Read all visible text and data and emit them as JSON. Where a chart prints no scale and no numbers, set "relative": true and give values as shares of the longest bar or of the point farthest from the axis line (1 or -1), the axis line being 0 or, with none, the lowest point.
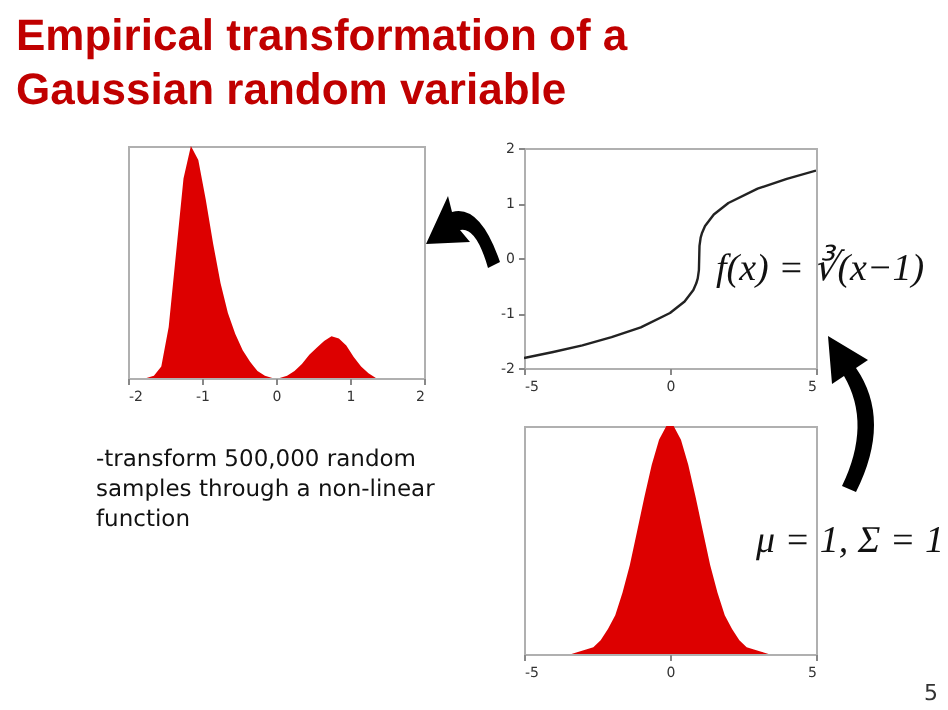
{
  "chart_data": [
    {
      "type": "area",
      "title": "Empirical transformation of a Gaussian random variable",
      "relative": true,
      "color": "#dd0000",
      "x": [
        -1.95,
        -1.85,
        -1.75,
        -1.65,
        -1.55,
        -1.45,
        -1.35,
        -1.25,
        -1.15,
        -1.05,
        -0.95,
        -0.85,
        -0.75,
        -0.65,
        -0.55,
        -0.45,
        -0.35,
        -0.25,
        -0.15,
        -0.05,
        0.05,
        0.15,
        0.25,
        0.35,
        0.45,
        0.55,
        0.65,
        0.75,
        0.85,
        0.95,
        1.05,
        1.15,
        1.25,
        1.35,
        1.45,
        1.55,
        1.65,
        1.75,
        1.85,
        1.95
      ],
      "values": [
        0,
        0,
        0,
        0.01,
        0.05,
        0.22,
        0.54,
        0.86,
        1,
        0.94,
        0.77,
        0.58,
        0.41,
        0.28,
        0.19,
        0.12,
        0.07,
        0.03,
        0.01,
        0,
        0,
        0.01,
        0.03,
        0.06,
        0.1,
        0.13,
        0.16,
        0.18,
        0.17,
        0.14,
        0.09,
        0.05,
        0.02,
        0,
        0,
        0,
        0,
        0,
        0,
        0
      ],
      "xlim": [
        -2,
        2
      ],
      "xticks": [
        -2,
        -1,
        0,
        1,
        2
      ],
      "grid": false,
      "annotations": [
        "-transform 500,000 random samples through a non-linear function"
      ]
    },
    {
      "type": "line",
      "series": [
        {
          "color": "#222222",
          "x": [
            -5,
            -4,
            -3,
            -2,
            -1,
            0,
            0.5,
            0.8,
            0.9,
            0.95,
            0.99,
            1,
            1.01,
            1.05,
            1.1,
            1.2,
            1.5,
            2,
            3,
            4,
            5
          ],
          "values": [
            -1.82,
            -1.71,
            -1.59,
            -1.44,
            -1.26,
            -1,
            -0.79,
            -0.58,
            -0.46,
            -0.37,
            -0.22,
            0,
            0.22,
            0.37,
            0.46,
            0.58,
            0.79,
            1,
            1.26,
            1.44,
            1.59
          ]
        }
      ],
      "xlim": [
        -5,
        5
      ],
      "xticks": [
        -5,
        0,
        5
      ],
      "ylim": [
        -2,
        2
      ],
      "yticks": [
        -2,
        -1,
        0,
        1,
        2
      ],
      "grid": false,
      "annotations": [
        "f(x) = ∛(x−1)"
      ]
    },
    {
      "type": "area",
      "relative": true,
      "color": "#dd0000",
      "x": [
        -4.875,
        -4.625,
        -4.375,
        -4.125,
        -3.875,
        -3.625,
        -3.375,
        -3.125,
        -2.875,
        -2.625,
        -2.375,
        -2.125,
        -1.875,
        -1.625,
        -1.375,
        -1.125,
        -0.875,
        -0.625,
        -0.375,
        -0.125,
        0.125,
        0.375,
        0.625,
        0.875,
        1.125,
        1.375,
        1.625,
        1.875,
        2.125,
        2.375,
        2.625,
        2.875,
        3.125,
        3.375,
        3.625,
        3.875,
        4.125,
        4.375,
        4.625,
        4.875
      ],
      "values": [
        0,
        0,
        0,
        0,
        0,
        0,
        0,
        0.01,
        0.02,
        0.03,
        0.06,
        0.11,
        0.17,
        0.27,
        0.39,
        0.54,
        0.69,
        0.83,
        0.94,
        1,
        1,
        0.94,
        0.83,
        0.69,
        0.54,
        0.39,
        0.27,
        0.17,
        0.11,
        0.06,
        0.03,
        0.02,
        0.01,
        0,
        0,
        0,
        0,
        0,
        0,
        0
      ],
      "xlim": [
        -5,
        5
      ],
      "xticks": [
        -5,
        0,
        5
      ],
      "grid": false,
      "annotations": [
        "μ = 1, Σ = 1",
        "5"
      ]
    }
  ]
}
